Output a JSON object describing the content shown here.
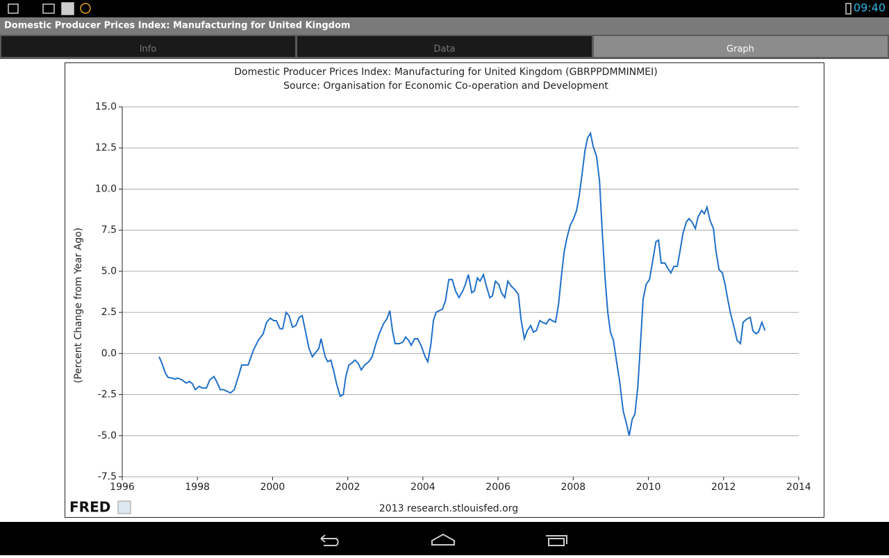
{
  "status_bar": {
    "time": "09:40"
  },
  "app": {
    "title": "Domestic Producer Prices Index: Manufacturing for United Kingdom",
    "tabs": [
      "Info",
      "Data",
      "Graph"
    ]
  },
  "chart_data": {
    "type": "line",
    "title": "Domestic Producer Prices Index: Manufacturing for United Kingdom (GBRPPDMMINMEI)",
    "subtitle": "Source: Organisation for Economic Co-operation and Development",
    "y_label": "(Percent Change from Year Ago)",
    "footer": "2013 research.stlouisfed.org",
    "logo": "FRED",
    "grid": true,
    "xlim": [
      1996,
      2014
    ],
    "xticks": [
      1996,
      1998,
      2000,
      2002,
      2004,
      2006,
      2008,
      2010,
      2012,
      2014
    ],
    "ylim": [
      -7.5,
      15
    ],
    "yticks": [
      -7.5,
      {
        "value": -5,
        "label": "-5.0"
      },
      -2.5,
      {
        "value": 0,
        "label": "0.0"
      },
      2.5,
      {
        "value": 5,
        "label": "5.0"
      },
      7.5,
      {
        "value": 10,
        "label": "10.0"
      },
      12.5,
      {
        "value": 15,
        "label": "15.0"
      }
    ],
    "x": [
      1996.98,
      1997.04,
      1997.15,
      1997.22,
      1997.33,
      1997.4,
      1997.48,
      1997.59,
      1997.7,
      1997.79,
      1997.87,
      1997.94,
      1998.05,
      1998.13,
      1998.24,
      1998.33,
      1998.44,
      1998.51,
      1998.61,
      1998.7,
      1998.79,
      1998.88,
      1998.98,
      1999.09,
      1999.18,
      1999.35,
      1999.49,
      1999.62,
      1999.75,
      1999.84,
      1999.94,
      2000.03,
      2000.1,
      2000.2,
      2000.27,
      2000.36,
      2000.44,
      2000.53,
      2000.62,
      2000.71,
      2000.79,
      2000.88,
      2000.97,
      2001.06,
      2001.16,
      2001.23,
      2001.29,
      2001.4,
      2001.47,
      2001.55,
      2001.62,
      2001.71,
      2001.8,
      2001.88,
      2001.95,
      2002.03,
      2002.1,
      2002.19,
      2002.28,
      2002.36,
      2002.45,
      2002.56,
      2002.65,
      2002.75,
      2002.84,
      2002.95,
      2003.04,
      2003.12,
      2003.19,
      2003.26,
      2003.38,
      2003.47,
      2003.54,
      2003.62,
      2003.69,
      2003.78,
      2003.86,
      2003.95,
      2004.06,
      2004.13,
      2004.21,
      2004.28,
      2004.35,
      2004.43,
      2004.52,
      2004.6,
      2004.69,
      2004.78,
      2004.87,
      2004.96,
      2005.06,
      2005.13,
      2005.21,
      2005.3,
      2005.37,
      2005.45,
      2005.52,
      2005.61,
      2005.69,
      2005.78,
      2005.85,
      2005.93,
      2006.02,
      2006.09,
      2006.18,
      2006.26,
      2006.35,
      2006.44,
      2006.54,
      2006.61,
      2006.7,
      2006.78,
      2006.87,
      2006.94,
      2007.02,
      2007.11,
      2007.18,
      2007.28,
      2007.37,
      2007.44,
      2007.53,
      2007.61,
      2007.68,
      2007.76,
      2007.83,
      2007.92,
      2008.01,
      2008.09,
      2008.16,
      2008.24,
      2008.31,
      2008.38,
      2008.46,
      2008.53,
      2008.62,
      2008.7,
      2008.77,
      2008.85,
      2008.92,
      2008.99,
      2009.07,
      2009.16,
      2009.23,
      2009.33,
      2009.42,
      2009.49,
      2009.57,
      2009.64,
      2009.72,
      2009.79,
      2009.86,
      2009.94,
      2010.03,
      2010.12,
      2010.2,
      2010.27,
      2010.34,
      2010.44,
      2010.51,
      2010.6,
      2010.68,
      2010.77,
      2010.84,
      2010.92,
      2011.01,
      2011.08,
      2011.16,
      2011.25,
      2011.32,
      2011.42,
      2011.49,
      2011.56,
      2011.64,
      2011.73,
      2011.8,
      2011.88,
      2011.97,
      2012.04,
      2012.12,
      2012.19,
      2012.28,
      2012.36,
      2012.45,
      2012.52,
      2012.62,
      2012.71,
      2012.78,
      2012.86,
      2012.93,
      2013.02,
      2013.1
    ],
    "series": [
      {
        "color": "#1f6fc8",
        "values": [
          -0.2,
          -0.5,
          -1.2,
          -1.45,
          -1.5,
          -1.55,
          -1.5,
          -1.6,
          -1.8,
          -1.7,
          -1.85,
          -2.2,
          -2.0,
          -2.1,
          -2.1,
          -1.6,
          -1.4,
          -1.7,
          -2.2,
          -2.2,
          -2.3,
          -2.4,
          -2.2,
          -1.4,
          -0.7,
          -0.7,
          0.2,
          0.8,
          1.2,
          1.9,
          2.15,
          2.0,
          2.0,
          1.5,
          1.5,
          2.5,
          2.3,
          1.6,
          1.7,
          2.2,
          2.3,
          1.3,
          0.3,
          -0.2,
          0.1,
          0.3,
          0.9,
          -0.2,
          -0.5,
          -0.4,
          -1.0,
          -1.9,
          -2.6,
          -2.5,
          -1.4,
          -0.7,
          -0.6,
          -0.4,
          -0.6,
          -1.0,
          -0.7,
          -0.5,
          -0.2,
          0.6,
          1.2,
          1.8,
          2.1,
          2.6,
          1.4,
          0.6,
          0.6,
          0.7,
          1.0,
          0.8,
          0.5,
          0.9,
          0.9,
          0.5,
          -0.2,
          -0.5,
          0.5,
          2.0,
          2.5,
          2.6,
          2.7,
          3.2,
          4.5,
          4.5,
          3.8,
          3.4,
          3.8,
          4.2,
          4.8,
          3.7,
          3.8,
          4.6,
          4.4,
          4.8,
          4.1,
          3.4,
          3.5,
          4.4,
          4.2,
          3.7,
          3.4,
          4.4,
          4.1,
          3.9,
          3.6,
          2.1,
          0.9,
          1.4,
          1.7,
          1.3,
          1.4,
          2.0,
          1.9,
          1.8,
          2.1,
          2.0,
          1.9,
          3.0,
          4.6,
          6.2,
          7.0,
          7.8,
          8.2,
          8.7,
          9.6,
          11.0,
          12.3,
          13.1,
          13.4,
          12.6,
          12.0,
          10.5,
          7.5,
          4.5,
          2.5,
          1.3,
          0.8,
          -0.6,
          -1.6,
          -3.5,
          -4.3,
          -5.0,
          -4.0,
          -3.7,
          -2.0,
          0.6,
          3.3,
          4.2,
          4.5,
          5.7,
          6.8,
          6.9,
          5.5,
          5.5,
          5.2,
          4.9,
          5.3,
          5.3,
          6.2,
          7.3,
          8.0,
          8.2,
          8.0,
          7.6,
          8.3,
          8.7,
          8.5,
          8.9,
          8.1,
          7.6,
          6.2,
          5.1,
          4.9,
          4.2,
          3.2,
          2.4,
          1.6,
          0.8,
          0.6,
          1.9,
          2.1,
          2.2,
          1.4,
          1.2,
          1.3,
          1.9,
          1.4
        ]
      }
    ]
  }
}
